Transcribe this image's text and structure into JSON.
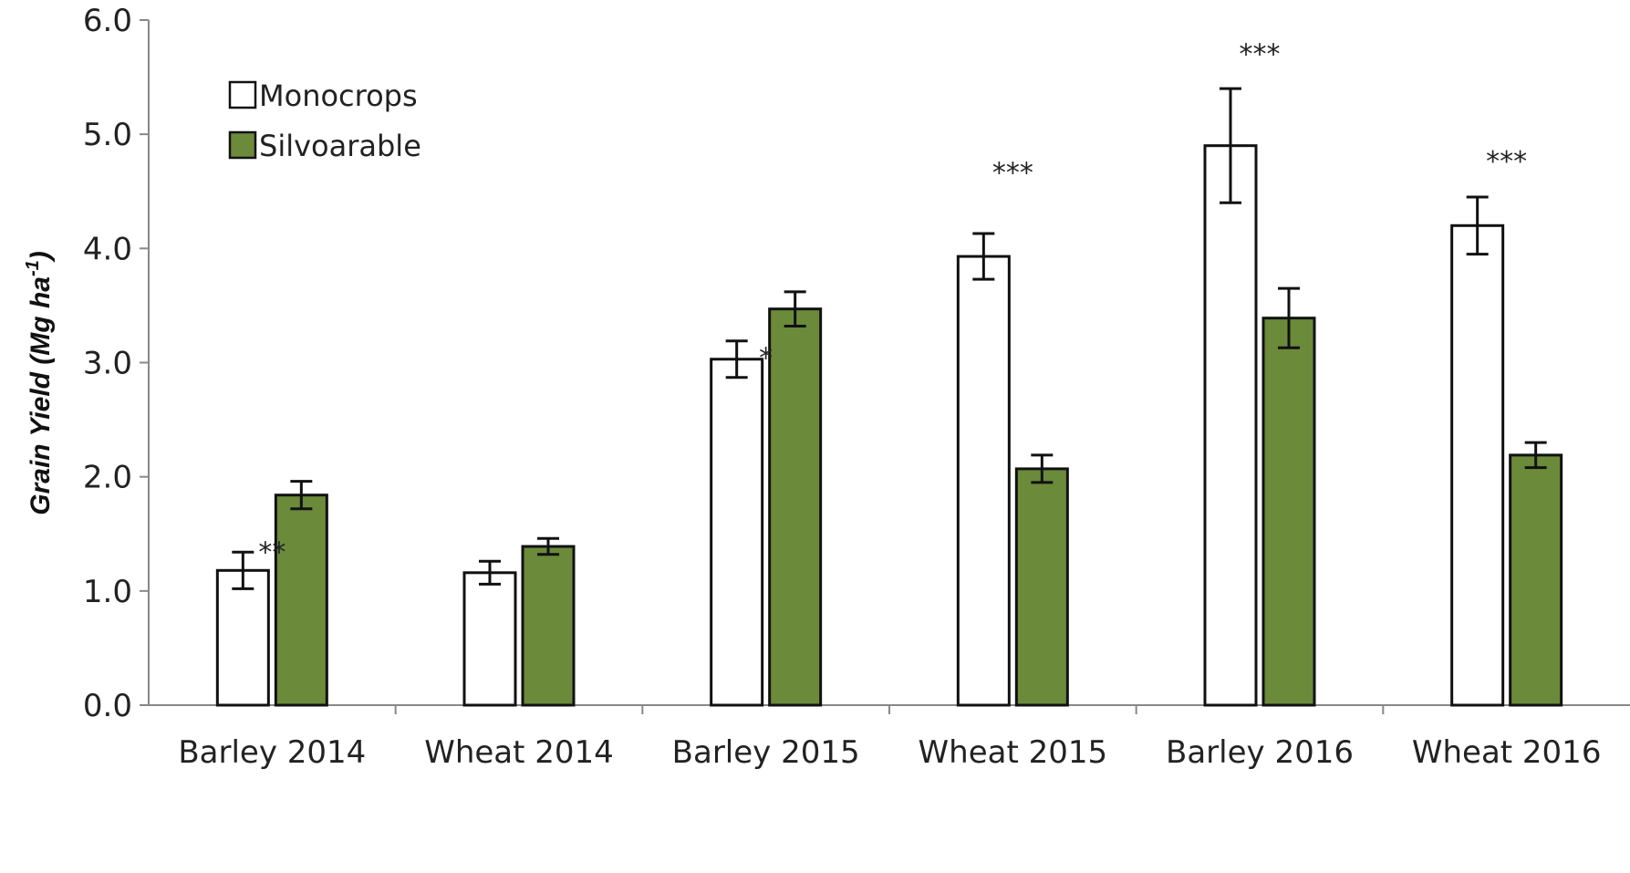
{
  "chart_data": {
    "type": "bar",
    "title": "",
    "xlabel": "",
    "ylabel": "Grain Yield (Mg ha-1)",
    "ylabel_parts": {
      "main": "Grain Yield (Mg ha",
      "sup": "-1",
      "close": ")"
    },
    "ylim": [
      0,
      6.0
    ],
    "yticks": [
      "0.0",
      "1.0",
      "2.0",
      "3.0",
      "4.0",
      "5.0",
      "6.0"
    ],
    "grid": false,
    "legend_position": "top-left",
    "categories": [
      "Barley 2014",
      "Wheat 2014",
      "Barley 2015",
      "Wheat 2015",
      "Barley 2016",
      "Wheat 2016"
    ],
    "series": [
      {
        "name": "Monocrops",
        "color": "#ffffff",
        "values": [
          1.18,
          1.16,
          3.03,
          3.93,
          4.9,
          4.2
        ],
        "errors": [
          0.16,
          0.1,
          0.16,
          0.2,
          0.5,
          0.25
        ]
      },
      {
        "name": "Silvoarable",
        "color": "#6b8a3a",
        "values": [
          1.84,
          1.39,
          3.47,
          2.07,
          3.39,
          2.19
        ],
        "errors": [
          0.12,
          0.07,
          0.15,
          0.12,
          0.26,
          0.11
        ]
      }
    ],
    "significance": [
      "**",
      "",
      "*",
      "***",
      "***",
      "***"
    ],
    "significance_y": [
      1.26,
      null,
      2.96,
      4.58,
      5.62,
      4.68
    ]
  }
}
